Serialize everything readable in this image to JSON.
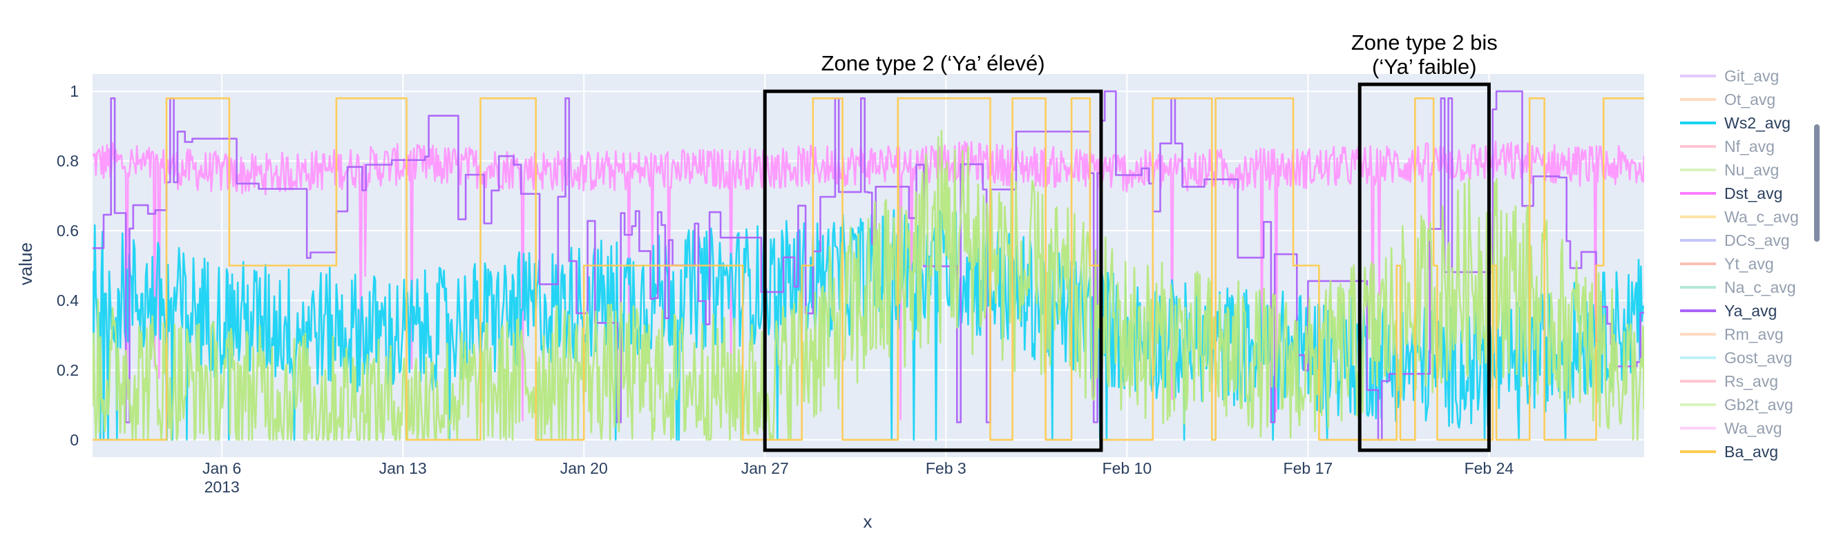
{
  "chart_data": {
    "type": "line",
    "xlabel": "x",
    "ylabel": "value",
    "x_range": [
      "2013-01-01",
      "2013-03-02"
    ],
    "ylim": [
      -0.05,
      1.05
    ],
    "x_ticks": [
      {
        "date": "2013-01-06",
        "label": "Jan 6",
        "sublabel": "2013"
      },
      {
        "date": "2013-01-13",
        "label": "Jan 13"
      },
      {
        "date": "2013-01-20",
        "label": "Jan 20"
      },
      {
        "date": "2013-01-27",
        "label": "Jan 27"
      },
      {
        "date": "2013-02-03",
        "label": "Feb 3"
      },
      {
        "date": "2013-02-10",
        "label": "Feb 10"
      },
      {
        "date": "2013-02-17",
        "label": "Feb 17"
      },
      {
        "date": "2013-02-24",
        "label": "Feb 24"
      }
    ],
    "y_ticks": [
      {
        "value": 0,
        "label": "0"
      },
      {
        "value": 0.2,
        "label": "0.2"
      },
      {
        "value": 0.4,
        "label": "0.4"
      },
      {
        "value": 0.6,
        "label": "0.6"
      },
      {
        "value": 0.8,
        "label": "0.8"
      },
      {
        "value": 1,
        "label": "1"
      }
    ],
    "grid": true,
    "plot_bgcolor": "#E5ECF6",
    "legend_placement": "right",
    "legend": [
      {
        "name": "Git_avg",
        "color": "#C896FA",
        "visible": false
      },
      {
        "name": "Ot_avg",
        "color": "#FFB785",
        "visible": false
      },
      {
        "name": "Ws2_avg",
        "color": "#19D3F3",
        "visible": true
      },
      {
        "name": "Nf_avg",
        "color": "#FF8FA6",
        "visible": false
      },
      {
        "name": "Nu_avg",
        "color": "#B6E880",
        "visible": false
      },
      {
        "name": "Dst_avg",
        "color": "#FF7DFF",
        "visible": true
      },
      {
        "name": "Wa_c_avg",
        "color": "#FECB52",
        "visible": false
      },
      {
        "name": "DCs_avg",
        "color": "#8A8EF5",
        "visible": false
      },
      {
        "name": "Yt_avg",
        "color": "#F5826A",
        "visible": false
      },
      {
        "name": "Na_c_avg",
        "color": "#6FD3B0",
        "visible": false
      },
      {
        "name": "Ya_avg",
        "color": "#AB63FA",
        "visible": true
      },
      {
        "name": "Rm_avg",
        "color": "#FFB785",
        "visible": false
      },
      {
        "name": "Gost_avg",
        "color": "#7FE6F5",
        "visible": false
      },
      {
        "name": "Rs_avg",
        "color": "#FF8FA6",
        "visible": false
      },
      {
        "name": "Gb2t_avg",
        "color": "#B6E880",
        "visible": false
      },
      {
        "name": "Wa_avg",
        "color": "#FFA6F2",
        "visible": false
      },
      {
        "name": "Ba_avg",
        "color": "#FECB52",
        "visible": true
      }
    ],
    "series": [
      {
        "name": "Dst_avg",
        "color": "#FF97FF",
        "pattern": "high_band",
        "x": [
          "2013-01-01",
          "2013-01-07",
          "2013-01-13",
          "2013-01-20",
          "2013-01-27",
          "2013-02-03",
          "2013-02-10",
          "2013-02-17",
          "2013-02-24",
          "2013-03-02"
        ],
        "y": [
          0.8,
          0.76,
          0.79,
          0.77,
          0.78,
          0.8,
          0.77,
          0.78,
          0.8,
          0.78
        ]
      },
      {
        "name": "Ws2_avg",
        "color": "#19D3F3",
        "pattern": "mid_noise",
        "x": [
          "2013-01-01",
          "2013-01-06",
          "2013-01-13",
          "2013-01-20",
          "2013-01-27",
          "2013-02-03",
          "2013-02-10",
          "2013-02-17",
          "2013-02-24",
          "2013-03-02"
        ],
        "y": [
          0.45,
          0.35,
          0.3,
          0.4,
          0.45,
          0.5,
          0.3,
          0.25,
          0.2,
          0.35
        ]
      },
      {
        "name": "Ya_avg",
        "color": "#AB63FA",
        "pattern": "step",
        "x": [
          "2013-01-01",
          "2013-01-05",
          "2013-01-09",
          "2013-01-13",
          "2013-01-20",
          "2013-01-27",
          "2013-02-03",
          "2013-02-08",
          "2013-02-13",
          "2013-02-20",
          "2013-02-24",
          "2013-03-02"
        ],
        "y": [
          0.55,
          0.85,
          0.65,
          0.9,
          0.5,
          0.5,
          0.65,
          0.95,
          0.7,
          0.05,
          0.95,
          0.2
        ]
      },
      {
        "name": "Gb2t_avg",
        "color": "#B6E880",
        "pattern": "wide_noise",
        "x": [
          "2013-01-01",
          "2013-01-06",
          "2013-01-13",
          "2013-01-20",
          "2013-01-27",
          "2013-02-03",
          "2013-02-10",
          "2013-02-17",
          "2013-02-24",
          "2013-03-02"
        ],
        "y": [
          0.2,
          0.15,
          0.1,
          0.2,
          0.15,
          0.6,
          0.3,
          0.2,
          0.5,
          0.15
        ]
      },
      {
        "name": "Ba_avg",
        "color": "#FECB52",
        "pattern": "square",
        "x": [
          "2013-01-01",
          "2013-01-06",
          "2013-01-09",
          "2013-01-13",
          "2013-01-20",
          "2013-01-26",
          "2013-01-28",
          "2013-02-08",
          "2013-02-10",
          "2013-02-17",
          "2013-02-24",
          "2013-03-02"
        ],
        "y": [
          0,
          0.5,
          0.98,
          0.5,
          0.5,
          0.98,
          0.01,
          0.98,
          0.5,
          0.98,
          0.98,
          0.5
        ]
      }
    ],
    "annotations": [
      {
        "text": "Zone type 2 (‘Ya’ élevé)",
        "x0": "2013-01-27",
        "x1": "2013-02-09",
        "y0": -0.03,
        "y1": 1.0
      },
      {
        "text": "Zone type 2 bis",
        "text2": "(‘Ya’ faible)",
        "x0": "2013-02-19",
        "x1": "2013-02-24",
        "y0": -0.03,
        "y1": 1.02
      }
    ]
  }
}
